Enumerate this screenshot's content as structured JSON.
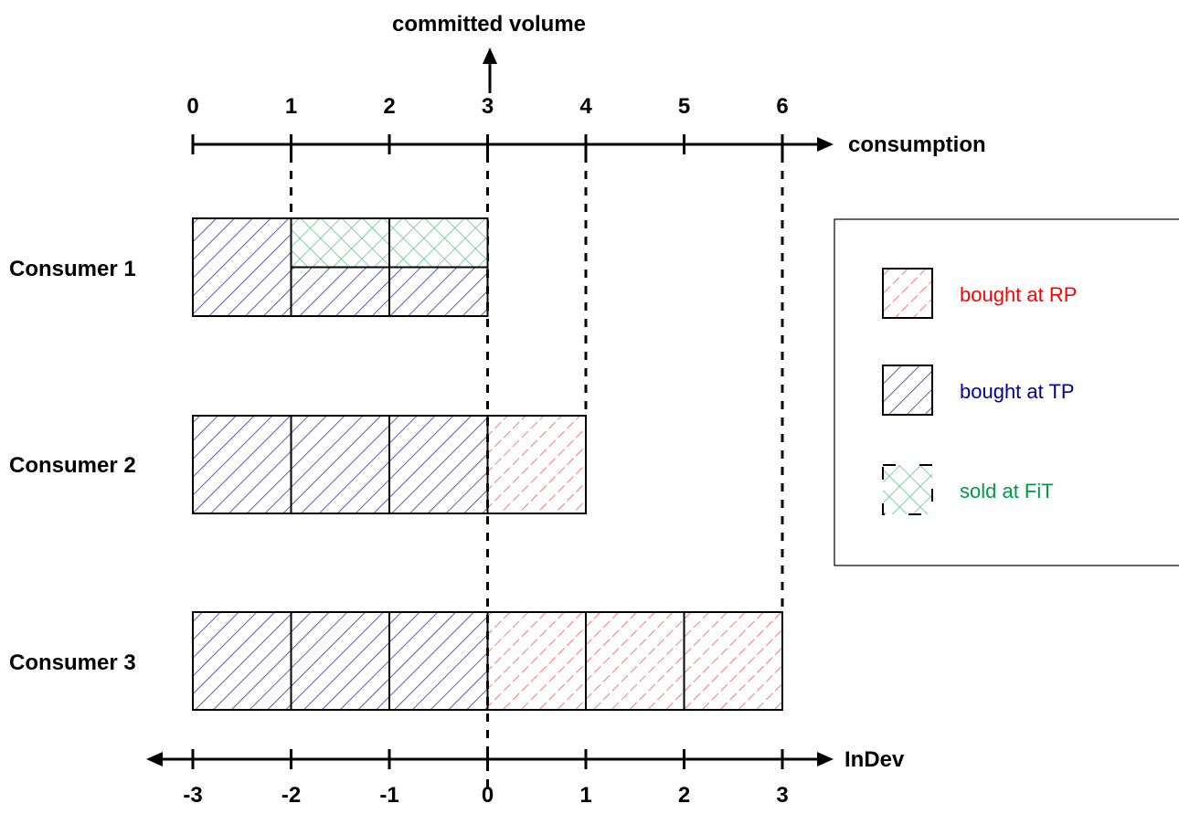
{
  "axis_top": {
    "label": "consumption",
    "ticks": [
      "0",
      "1",
      "2",
      "3",
      "4",
      "5",
      "6"
    ]
  },
  "axis_bottom": {
    "label": "InDev",
    "ticks": [
      "-3",
      "-2",
      "-1",
      "0",
      "1",
      "2",
      "3"
    ]
  },
  "vertical_axis": {
    "label": "committed volume",
    "at_unit": 3
  },
  "consumers": [
    {
      "label": "Consumer 1",
      "consumption": 3,
      "segments": [
        {
          "from": 0,
          "to": 1,
          "kind": "tp"
        },
        {
          "from": 1,
          "to": 2,
          "kind": "tp_fit_split"
        },
        {
          "from": 2,
          "to": 3,
          "kind": "tp_fit_split"
        }
      ]
    },
    {
      "label": "Consumer 2",
      "consumption": 4,
      "segments": [
        {
          "from": 0,
          "to": 1,
          "kind": "tp"
        },
        {
          "from": 1,
          "to": 2,
          "kind": "tp"
        },
        {
          "from": 2,
          "to": 3,
          "kind": "tp"
        },
        {
          "from": 3,
          "to": 4,
          "kind": "rp"
        }
      ]
    },
    {
      "label": "Consumer 3",
      "consumption": 6,
      "segments": [
        {
          "from": 0,
          "to": 1,
          "kind": "tp"
        },
        {
          "from": 1,
          "to": 2,
          "kind": "tp"
        },
        {
          "from": 2,
          "to": 3,
          "kind": "tp"
        },
        {
          "from": 3,
          "to": 4,
          "kind": "rp"
        },
        {
          "from": 4,
          "to": 5,
          "kind": "rp"
        },
        {
          "from": 5,
          "to": 6,
          "kind": "rp"
        }
      ]
    }
  ],
  "legend": {
    "items": [
      {
        "label": "bought at RP",
        "kind": "rp",
        "color": "#ff0000"
      },
      {
        "label": "bought at TP",
        "kind": "tp",
        "color": "#000099"
      },
      {
        "label": "sold at FiT",
        "kind": "fit",
        "color": "#009a44"
      }
    ]
  },
  "colors": {
    "tp_hatch": "#3333aa",
    "rp_hatch": "#ff5555",
    "fit_hatch": "#66c28f"
  }
}
